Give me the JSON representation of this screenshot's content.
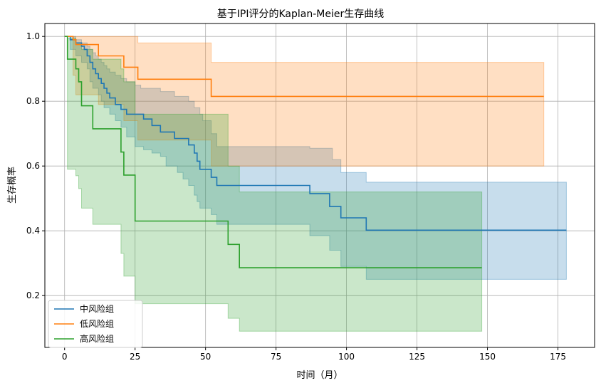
{
  "chart_data": {
    "type": "line",
    "title": "基于IPI评分的Kaplan-Meier生存曲线",
    "xlabel": "时间（月）",
    "ylabel": "生存概率",
    "xlim": [
      -7,
      188
    ],
    "ylim": [
      0.04,
      1.04
    ],
    "xticks": [
      0,
      25,
      50,
      75,
      100,
      125,
      150,
      175
    ],
    "yticks": [
      0.2,
      0.4,
      0.6,
      0.8,
      1.0
    ],
    "grid": true,
    "legend_position": "lower-left",
    "series": [
      {
        "name": "中风险组",
        "color": "#1f77b4",
        "steps": [
          [
            0,
            1.0
          ],
          [
            2,
            0.99
          ],
          [
            4,
            0.98
          ],
          [
            6,
            0.97
          ],
          [
            7,
            0.96
          ],
          [
            8,
            0.94
          ],
          [
            9,
            0.92
          ],
          [
            10,
            0.9
          ],
          [
            11,
            0.885
          ],
          [
            12,
            0.87
          ],
          [
            13,
            0.855
          ],
          [
            14,
            0.84
          ],
          [
            15,
            0.825
          ],
          [
            16,
            0.81
          ],
          [
            18,
            0.79
          ],
          [
            20,
            0.775
          ],
          [
            22,
            0.76
          ],
          [
            25,
            0.76
          ],
          [
            28,
            0.745
          ],
          [
            31,
            0.725
          ],
          [
            34,
            0.705
          ],
          [
            39,
            0.685
          ],
          [
            42,
            0.685
          ],
          [
            44,
            0.665
          ],
          [
            46,
            0.64
          ],
          [
            47,
            0.615
          ],
          [
            48,
            0.59
          ],
          [
            52,
            0.565
          ],
          [
            54,
            0.54
          ],
          [
            87,
            0.515
          ],
          [
            94,
            0.475
          ],
          [
            98,
            0.44
          ],
          [
            107,
            0.402
          ],
          [
            178,
            0.402
          ]
        ],
        "ci_lower": [
          [
            0,
            1.0
          ],
          [
            2,
            0.96
          ],
          [
            4,
            0.94
          ],
          [
            6,
            0.92
          ],
          [
            8,
            0.9
          ],
          [
            9,
            0.86
          ],
          [
            10,
            0.84
          ],
          [
            12,
            0.82
          ],
          [
            13,
            0.8
          ],
          [
            14,
            0.78
          ],
          [
            16,
            0.76
          ],
          [
            18,
            0.74
          ],
          [
            20,
            0.72
          ],
          [
            22,
            0.69
          ],
          [
            25,
            0.66
          ],
          [
            28,
            0.65
          ],
          [
            31,
            0.64
          ],
          [
            34,
            0.63
          ],
          [
            36,
            0.6
          ],
          [
            40,
            0.58
          ],
          [
            42,
            0.56
          ],
          [
            44,
            0.54
          ],
          [
            46,
            0.51
          ],
          [
            47,
            0.49
          ],
          [
            48,
            0.47
          ],
          [
            52,
            0.45
          ],
          [
            54,
            0.42
          ],
          [
            87,
            0.385
          ],
          [
            94,
            0.34
          ],
          [
            98,
            0.29
          ],
          [
            107,
            0.25
          ],
          [
            178,
            0.25
          ]
        ],
        "ci_upper": [
          [
            0,
            1.0
          ],
          [
            3,
            1.0
          ],
          [
            4,
            0.99
          ],
          [
            6,
            0.98
          ],
          [
            8,
            0.97
          ],
          [
            9,
            0.96
          ],
          [
            10,
            0.95
          ],
          [
            11,
            0.94
          ],
          [
            12,
            0.93
          ],
          [
            13,
            0.92
          ],
          [
            14,
            0.91
          ],
          [
            15,
            0.9
          ],
          [
            16,
            0.89
          ],
          [
            18,
            0.88
          ],
          [
            20,
            0.87
          ],
          [
            22,
            0.86
          ],
          [
            25,
            0.85
          ],
          [
            27,
            0.84
          ],
          [
            34,
            0.83
          ],
          [
            39,
            0.815
          ],
          [
            44,
            0.8
          ],
          [
            46,
            0.78
          ],
          [
            48,
            0.76
          ],
          [
            49,
            0.74
          ],
          [
            52,
            0.7
          ],
          [
            54,
            0.66
          ],
          [
            87,
            0.655
          ],
          [
            95,
            0.62
          ],
          [
            98,
            0.58
          ],
          [
            107,
            0.55
          ],
          [
            178,
            0.55
          ]
        ]
      },
      {
        "name": "低风险组",
        "color": "#ff7f0e",
        "steps": [
          [
            0,
            1.0
          ],
          [
            3,
            0.99
          ],
          [
            4,
            0.975
          ],
          [
            12,
            0.94
          ],
          [
            21,
            0.905
          ],
          [
            26,
            0.868
          ],
          [
            52,
            0.815
          ],
          [
            170,
            0.815
          ]
        ],
        "ci_lower": [
          [
            0,
            1.0
          ],
          [
            3,
            0.88
          ],
          [
            4,
            0.82
          ],
          [
            12,
            0.79
          ],
          [
            21,
            0.74
          ],
          [
            26,
            0.68
          ],
          [
            52,
            0.6
          ],
          [
            170,
            0.6
          ]
        ],
        "ci_upper": [
          [
            0,
            1.0
          ],
          [
            26,
            1.0
          ],
          [
            26,
            0.98
          ],
          [
            52,
            0.95
          ],
          [
            52,
            0.92
          ],
          [
            170,
            0.92
          ]
        ]
      },
      {
        "name": "高风险组",
        "color": "#2ca02c",
        "steps": [
          [
            0,
            1.0
          ],
          [
            1,
            0.93
          ],
          [
            4,
            0.9
          ],
          [
            5,
            0.86
          ],
          [
            6,
            0.786
          ],
          [
            10,
            0.715
          ],
          [
            20,
            0.643
          ],
          [
            21,
            0.572
          ],
          [
            25,
            0.43
          ],
          [
            58,
            0.358
          ],
          [
            62,
            0.286
          ],
          [
            148,
            0.286
          ]
        ],
        "ci_lower": [
          [
            0,
            1.0
          ],
          [
            1,
            0.59
          ],
          [
            4,
            0.57
          ],
          [
            5,
            0.53
          ],
          [
            6,
            0.47
          ],
          [
            10,
            0.42
          ],
          [
            20,
            0.33
          ],
          [
            21,
            0.26
          ],
          [
            25,
            0.175
          ],
          [
            58,
            0.13
          ],
          [
            62,
            0.09
          ],
          [
            148,
            0.09
          ]
        ],
        "ci_upper": [
          [
            0,
            1.0
          ],
          [
            1,
            0.995
          ],
          [
            4,
            0.98
          ],
          [
            6,
            0.96
          ],
          [
            10,
            0.93
          ],
          [
            20,
            0.9
          ],
          [
            21,
            0.86
          ],
          [
            25,
            0.76
          ],
          [
            58,
            0.6
          ],
          [
            62,
            0.52
          ],
          [
            148,
            0.52
          ]
        ]
      }
    ]
  }
}
